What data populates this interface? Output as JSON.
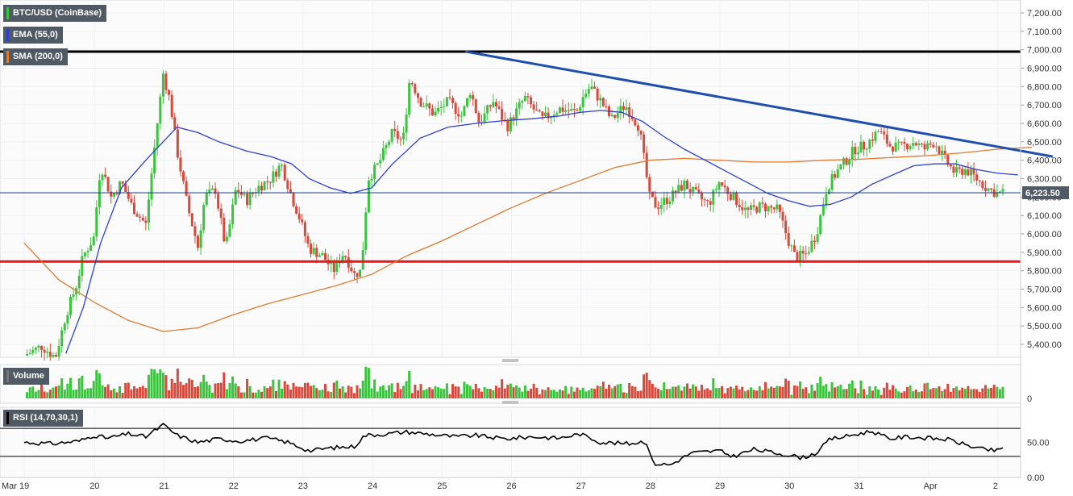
{
  "legend": {
    "main": "BTC/USD (CoinBase)",
    "ema": "EMA (55,0)",
    "sma": "SMA (200,0)",
    "volume": "Volume",
    "rsi": "RSI (14,70,30,1)"
  },
  "colors": {
    "up": "#39c43c",
    "down": "#d8493b",
    "ema": "#2c3fd1",
    "sma": "#e07a2e",
    "trendline": "#1f4fae",
    "resistance": "#000000",
    "support": "#e01b1b",
    "price_line": "#1c3f8a",
    "tag_bg": "#505a64",
    "grid": "#eef0f3"
  },
  "chart_data": {
    "type": "candlestick",
    "x_tick_labels": [
      "Mar 19",
      "20",
      "21",
      "22",
      "23",
      "24",
      "25",
      "26",
      "27",
      "28",
      "29",
      "30",
      "31",
      "Apr",
      "2"
    ],
    "price_axis": {
      "ticks": [
        "7,200.00",
        "7,100.00",
        "7,000.00",
        "6,900.00",
        "6,800.00",
        "6,700.00",
        "6,600.00",
        "6,500.00",
        "6,400.00",
        "6,300.00",
        "6,200.00",
        "6,100.00",
        "6,000.00",
        "5,900.00",
        "5,800.00",
        "5,700.00",
        "5,600.00",
        "5,500.00",
        "5,400.00"
      ],
      "ylim": [
        5330,
        7270
      ]
    },
    "last_price": 6223.5,
    "last_price_label": "6,223.50",
    "horizontal_levels": {
      "resistance": 6990,
      "support": 5850
    },
    "trendline": [
      {
        "day": 6.35,
        "price": 6990
      },
      {
        "day": 14.8,
        "price": 6420
      }
    ],
    "close_path": [
      [
        0.0,
        5340
      ],
      [
        0.25,
        5390
      ],
      [
        0.45,
        5330
      ],
      [
        0.6,
        5560
      ],
      [
        0.75,
        5720
      ],
      [
        0.85,
        5880
      ],
      [
        1.0,
        5980
      ],
      [
        1.1,
        6380
      ],
      [
        1.25,
        6200
      ],
      [
        1.4,
        6280
      ],
      [
        1.55,
        6150
      ],
      [
        1.75,
        6050
      ],
      [
        1.9,
        6550
      ],
      [
        2.0,
        6870
      ],
      [
        2.1,
        6720
      ],
      [
        2.2,
        6450
      ],
      [
        2.35,
        6150
      ],
      [
        2.5,
        5930
      ],
      [
        2.6,
        6200
      ],
      [
        2.75,
        6240
      ],
      [
        2.9,
        5920
      ],
      [
        3.05,
        6250
      ],
      [
        3.2,
        6180
      ],
      [
        3.35,
        6250
      ],
      [
        3.55,
        6300
      ],
      [
        3.7,
        6380
      ],
      [
        3.85,
        6200
      ],
      [
        3.95,
        6100
      ],
      [
        4.1,
        5920
      ],
      [
        4.3,
        5880
      ],
      [
        4.45,
        5800
      ],
      [
        4.6,
        5900
      ],
      [
        4.75,
        5780
      ],
      [
        4.85,
        5800
      ],
      [
        4.95,
        6300
      ],
      [
        5.1,
        6380
      ],
      [
        5.3,
        6550
      ],
      [
        5.45,
        6500
      ],
      [
        5.55,
        6850
      ],
      [
        5.7,
        6720
      ],
      [
        5.9,
        6650
      ],
      [
        6.1,
        6720
      ],
      [
        6.3,
        6640
      ],
      [
        6.42,
        6780
      ],
      [
        6.55,
        6600
      ],
      [
        6.75,
        6720
      ],
      [
        6.95,
        6580
      ],
      [
        7.2,
        6740
      ],
      [
        7.45,
        6620
      ],
      [
        7.7,
        6680
      ],
      [
        7.95,
        6660
      ],
      [
        8.05,
        6750
      ],
      [
        8.15,
        6800
      ],
      [
        8.3,
        6720
      ],
      [
        8.45,
        6620
      ],
      [
        8.65,
        6700
      ],
      [
        8.85,
        6580
      ],
      [
        9.0,
        6200
      ],
      [
        9.1,
        6150
      ],
      [
        9.3,
        6200
      ],
      [
        9.5,
        6270
      ],
      [
        9.7,
        6200
      ],
      [
        9.85,
        6160
      ],
      [
        10.0,
        6280
      ],
      [
        10.2,
        6200
      ],
      [
        10.4,
        6120
      ],
      [
        10.6,
        6150
      ],
      [
        10.85,
        6130
      ],
      [
        11.0,
        5960
      ],
      [
        11.1,
        5870
      ],
      [
        11.25,
        5890
      ],
      [
        11.4,
        6000
      ],
      [
        11.55,
        6250
      ],
      [
        11.7,
        6340
      ],
      [
        11.85,
        6410
      ],
      [
        11.95,
        6460
      ],
      [
        12.1,
        6480
      ],
      [
        12.2,
        6520
      ],
      [
        12.3,
        6560
      ],
      [
        12.45,
        6480
      ],
      [
        12.6,
        6470
      ],
      [
        12.8,
        6500
      ],
      [
        12.95,
        6460
      ],
      [
        13.1,
        6500
      ],
      [
        13.25,
        6400
      ],
      [
        13.4,
        6330
      ],
      [
        13.55,
        6350
      ],
      [
        13.7,
        6300
      ],
      [
        13.85,
        6250
      ],
      [
        14.0,
        6220
      ],
      [
        14.1,
        6223.5
      ]
    ],
    "ema_path": [
      [
        0.6,
        5350
      ],
      [
        0.85,
        5600
      ],
      [
        1.1,
        5950
      ],
      [
        1.4,
        6250
      ],
      [
        1.75,
        6400
      ],
      [
        2.0,
        6500
      ],
      [
        2.2,
        6580
      ],
      [
        2.5,
        6550
      ],
      [
        2.8,
        6500
      ],
      [
        3.2,
        6450
      ],
      [
        3.55,
        6420
      ],
      [
        3.85,
        6380
      ],
      [
        4.1,
        6300
      ],
      [
        4.4,
        6250
      ],
      [
        4.7,
        6220
      ],
      [
        5.0,
        6250
      ],
      [
        5.3,
        6380
      ],
      [
        5.7,
        6520
      ],
      [
        6.1,
        6580
      ],
      [
        6.5,
        6600
      ],
      [
        6.9,
        6615
      ],
      [
        7.3,
        6625
      ],
      [
        7.7,
        6640
      ],
      [
        8.0,
        6660
      ],
      [
        8.3,
        6670
      ],
      [
        8.6,
        6660
      ],
      [
        8.9,
        6610
      ],
      [
        9.2,
        6530
      ],
      [
        9.5,
        6460
      ],
      [
        9.8,
        6400
      ],
      [
        10.1,
        6340
      ],
      [
        10.4,
        6280
      ],
      [
        10.7,
        6220
      ],
      [
        11.0,
        6180
      ],
      [
        11.3,
        6150
      ],
      [
        11.6,
        6160
      ],
      [
        11.9,
        6200
      ],
      [
        12.2,
        6270
      ],
      [
        12.5,
        6320
      ],
      [
        12.8,
        6370
      ],
      [
        13.1,
        6380
      ],
      [
        13.4,
        6380
      ],
      [
        13.7,
        6350
      ],
      [
        14.0,
        6330
      ],
      [
        14.3,
        6320
      ]
    ],
    "sma_path": [
      [
        0.0,
        5950
      ],
      [
        0.5,
        5750
      ],
      [
        1.0,
        5630
      ],
      [
        1.5,
        5530
      ],
      [
        2.0,
        5470
      ],
      [
        2.5,
        5490
      ],
      [
        3.0,
        5560
      ],
      [
        3.5,
        5620
      ],
      [
        4.0,
        5670
      ],
      [
        4.5,
        5720
      ],
      [
        5.0,
        5780
      ],
      [
        5.5,
        5880
      ],
      [
        6.0,
        5960
      ],
      [
        6.5,
        6050
      ],
      [
        7.0,
        6140
      ],
      [
        7.5,
        6220
      ],
      [
        8.0,
        6290
      ],
      [
        8.5,
        6360
      ],
      [
        9.0,
        6400
      ],
      [
        9.5,
        6410
      ],
      [
        10.0,
        6400
      ],
      [
        10.5,
        6390
      ],
      [
        11.0,
        6390
      ],
      [
        11.5,
        6400
      ],
      [
        12.0,
        6405
      ],
      [
        12.5,
        6415
      ],
      [
        13.0,
        6425
      ],
      [
        13.5,
        6440
      ],
      [
        14.0,
        6460
      ],
      [
        14.5,
        6470
      ]
    ],
    "volume_axis": {
      "tick": "0"
    },
    "rsi_axis": {
      "ticks": [
        "50.00",
        "0.00"
      ],
      "levels": [
        70,
        30
      ],
      "ylim": [
        0,
        100
      ]
    },
    "rsi_path": [
      [
        0.0,
        50
      ],
      [
        0.4,
        48
      ],
      [
        0.8,
        52
      ],
      [
        1.0,
        60
      ],
      [
        1.2,
        56
      ],
      [
        1.5,
        62
      ],
      [
        1.75,
        58
      ],
      [
        2.0,
        75
      ],
      [
        2.2,
        60
      ],
      [
        2.5,
        50
      ],
      [
        2.8,
        55
      ],
      [
        3.1,
        52
      ],
      [
        3.5,
        56
      ],
      [
        3.8,
        50
      ],
      [
        4.1,
        38
      ],
      [
        4.4,
        42
      ],
      [
        4.75,
        44
      ],
      [
        4.9,
        60
      ],
      [
        5.2,
        62
      ],
      [
        5.5,
        65
      ],
      [
        5.8,
        62
      ],
      [
        6.2,
        58
      ],
      [
        6.5,
        60
      ],
      [
        6.9,
        55
      ],
      [
        7.3,
        58
      ],
      [
        7.7,
        56
      ],
      [
        8.0,
        62
      ],
      [
        8.3,
        50
      ],
      [
        8.7,
        48
      ],
      [
        8.95,
        52
      ],
      [
        9.05,
        20
      ],
      [
        9.3,
        18
      ],
      [
        9.6,
        35
      ],
      [
        10.0,
        38
      ],
      [
        10.2,
        30
      ],
      [
        10.5,
        40
      ],
      [
        10.8,
        35
      ],
      [
        11.0,
        32
      ],
      [
        11.2,
        28
      ],
      [
        11.4,
        35
      ],
      [
        11.6,
        55
      ],
      [
        11.8,
        58
      ],
      [
        12.0,
        62
      ],
      [
        12.2,
        66
      ],
      [
        12.45,
        55
      ],
      [
        12.7,
        58
      ],
      [
        13.0,
        56
      ],
      [
        13.3,
        54
      ],
      [
        13.6,
        45
      ],
      [
        13.8,
        40
      ],
      [
        14.0,
        38
      ],
      [
        14.1,
        42
      ]
    ]
  }
}
